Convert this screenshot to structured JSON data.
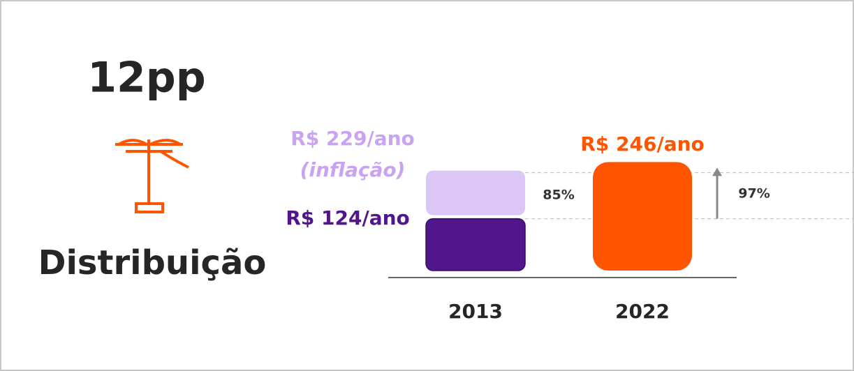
{
  "headline": "12pp",
  "segment": "Distribuição",
  "chart_data": {
    "type": "bar",
    "categories": [
      "2013",
      "2022"
    ],
    "values": [
      124,
      246
    ],
    "value_labels": [
      "R$ 124/ano",
      "R$ 246/ano"
    ],
    "colors": [
      "#52168c",
      "#ff5500"
    ],
    "inflation": {
      "value": 229,
      "value_label": "R$ 229/ano",
      "note": "(inflação)",
      "color": "#dcc6f5",
      "label_color": "#c9a3f2"
    },
    "growth_labels": [
      "85%",
      "97%"
    ]
  }
}
